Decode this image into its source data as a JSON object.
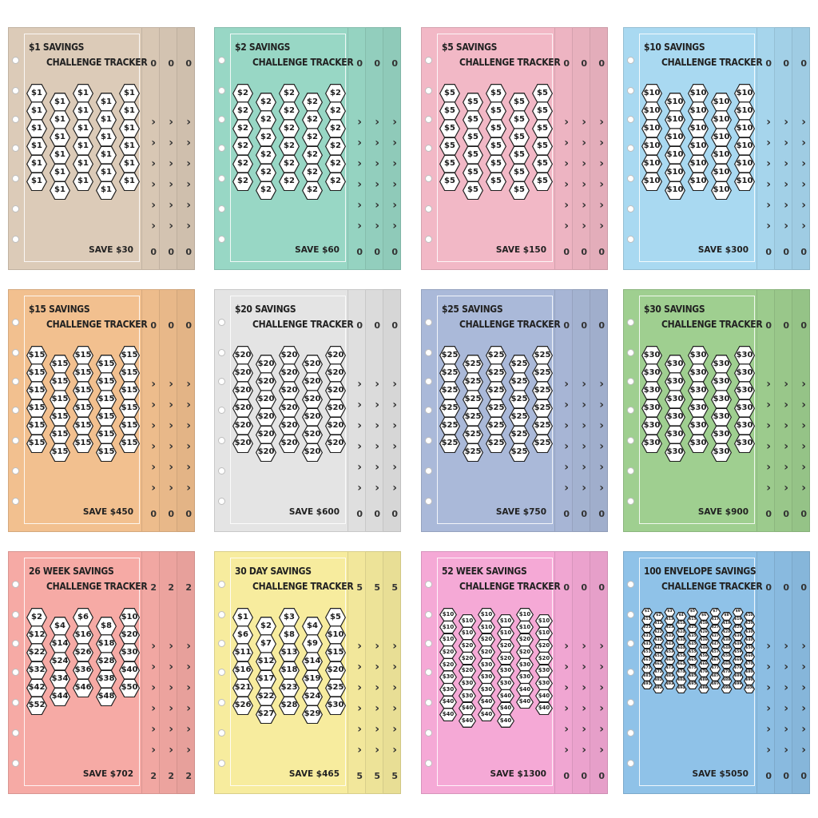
{
  "trackers": [
    {
      "title_line1": "$1 SAVINGS",
      "title_line2": "CHALLENGE TRACKER",
      "save_label": "SAVE $30",
      "back_peek": "0",
      "color": "#dccbb8",
      "hex_values": [
        "$1",
        "$1",
        "$1",
        "$1",
        "$1",
        "$1",
        "$1",
        "$1",
        "$1",
        "$1",
        "$1",
        "$1",
        "$1",
        "$1",
        "$1",
        "$1",
        "$1",
        "$1",
        "$1",
        "$1",
        "$1",
        "$1",
        "$1",
        "$1",
        "$1",
        "$1",
        "$1",
        "$1",
        "$1",
        "$1"
      ]
    },
    {
      "title_line1": "$2 SAVINGS",
      "title_line2": "CHALLENGE TRACKER",
      "save_label": "SAVE $60",
      "back_peek": "0",
      "color": "#98d7c5",
      "hex_values": [
        "$2",
        "$2",
        "$2",
        "$2",
        "$2",
        "$2",
        "$2",
        "$2",
        "$2",
        "$2",
        "$2",
        "$2",
        "$2",
        "$2",
        "$2",
        "$2",
        "$2",
        "$2",
        "$2",
        "$2",
        "$2",
        "$2",
        "$2",
        "$2",
        "$2",
        "$2",
        "$2",
        "$2",
        "$2",
        "$2"
      ]
    },
    {
      "title_line1": "$5 SAVINGS",
      "title_line2": "CHALLENGE TRACKER",
      "save_label": "SAVE $150",
      "back_peek": "0",
      "color": "#f2b8c6",
      "hex_values": [
        "$5",
        "$5",
        "$5",
        "$5",
        "$5",
        "$5",
        "$5",
        "$5",
        "$5",
        "$5",
        "$5",
        "$5",
        "$5",
        "$5",
        "$5",
        "$5",
        "$5",
        "$5",
        "$5",
        "$5",
        "$5",
        "$5",
        "$5",
        "$5",
        "$5",
        "$5",
        "$5",
        "$5",
        "$5",
        "$5"
      ]
    },
    {
      "title_line1": "$10 SAVINGS",
      "title_line2": "CHALLENGE TRACKER",
      "save_label": "SAVE $300",
      "back_peek": "0",
      "color": "#a9d9f1",
      "hex_values": [
        "$10",
        "$10",
        "$10",
        "$10",
        "$10",
        "$10",
        "$10",
        "$10",
        "$10",
        "$10",
        "$10",
        "$10",
        "$10",
        "$10",
        "$10",
        "$10",
        "$10",
        "$10",
        "$10",
        "$10",
        "$10",
        "$10",
        "$10",
        "$10",
        "$10",
        "$10",
        "$10",
        "$10",
        "$10",
        "$10"
      ]
    },
    {
      "title_line1": "$15 SAVINGS",
      "title_line2": "CHALLENGE TRACKER",
      "save_label": "SAVE $450",
      "back_peek": "0",
      "color": "#f2c08f",
      "hex_values": [
        "$15",
        "$15",
        "$15",
        "$15",
        "$15",
        "$15",
        "$15",
        "$15",
        "$15",
        "$15",
        "$15",
        "$15",
        "$15",
        "$15",
        "$15",
        "$15",
        "$15",
        "$15",
        "$15",
        "$15",
        "$15",
        "$15",
        "$15",
        "$15",
        "$15",
        "$15",
        "$15",
        "$15",
        "$15",
        "$15"
      ]
    },
    {
      "title_line1": "$20 SAVINGS",
      "title_line2": "CHALLENGE TRACKER",
      "save_label": "SAVE $600",
      "back_peek": "0",
      "color": "#e4e4e4",
      "hex_values": [
        "$20",
        "$20",
        "$20",
        "$20",
        "$20",
        "$20",
        "$20",
        "$20",
        "$20",
        "$20",
        "$20",
        "$20",
        "$20",
        "$20",
        "$20",
        "$20",
        "$20",
        "$20",
        "$20",
        "$20",
        "$20",
        "$20",
        "$20",
        "$20",
        "$20",
        "$20",
        "$20",
        "$20",
        "$20",
        "$20"
      ]
    },
    {
      "title_line1": "$25 SAVINGS",
      "title_line2": "CHALLENGE TRACKER",
      "save_label": "SAVE $750",
      "back_peek": "0",
      "color": "#aab9d9",
      "hex_values": [
        "$25",
        "$25",
        "$25",
        "$25",
        "$25",
        "$25",
        "$25",
        "$25",
        "$25",
        "$25",
        "$25",
        "$25",
        "$25",
        "$25",
        "$25",
        "$25",
        "$25",
        "$25",
        "$25",
        "$25",
        "$25",
        "$25",
        "$25",
        "$25",
        "$25",
        "$25",
        "$25",
        "$25",
        "$25",
        "$25"
      ]
    },
    {
      "title_line1": "$30 SAVINGS",
      "title_line2": "CHALLENGE TRACKER",
      "save_label": "SAVE $900",
      "back_peek": "0",
      "color": "#9fcf90",
      "hex_values": [
        "$30",
        "$30",
        "$30",
        "$30",
        "$30",
        "$30",
        "$30",
        "$30",
        "$30",
        "$30",
        "$30",
        "$30",
        "$30",
        "$30",
        "$30",
        "$30",
        "$30",
        "$30",
        "$30",
        "$30",
        "$30",
        "$30",
        "$30",
        "$30",
        "$30",
        "$30",
        "$30",
        "$30",
        "$30",
        "$30"
      ]
    },
    {
      "title_line1": "26 WEEK SAVINGS",
      "title_line2": "CHALLENGE TRACKER",
      "save_label": "SAVE $702",
      "back_peek": "2",
      "color": "#f6aaa5",
      "hex_values": [
        "$2",
        "$4",
        "$6",
        "$8",
        "$10",
        "$12",
        "$14",
        "$16",
        "$18",
        "$20",
        "$22",
        "$24",
        "$26",
        "$28",
        "$30",
        "$32",
        "$34",
        "$36",
        "$38",
        "$40",
        "$42",
        "$44",
        "$46",
        "$48",
        "$50",
        "$52"
      ]
    },
    {
      "title_line1": "30 DAY SAVINGS",
      "title_line2": "CHALLENGE TRACKER",
      "save_label": "SAVE $465",
      "back_peek": "5",
      "color": "#f7ec9e",
      "hex_values": [
        "$1",
        "$2",
        "$3",
        "$4",
        "$5",
        "$6",
        "$7",
        "$8",
        "$9",
        "$10",
        "$11",
        "$12",
        "$13",
        "$14",
        "$15",
        "$16",
        "$17",
        "$18",
        "$19",
        "$20",
        "$21",
        "$22",
        "$23",
        "$24",
        "$25",
        "$26",
        "$27",
        "$28",
        "$29",
        "$30"
      ]
    },
    {
      "title_line1": "52 WEEK SAVINGS",
      "title_line2": "CHALLENGE TRACKER",
      "save_label": "SAVE $1300",
      "back_peek": "0",
      "color": "#f5a9d6",
      "hex_values": [
        "$10",
        "$10",
        "$10",
        "$10",
        "$10",
        "$10",
        "$10",
        "$10",
        "$10",
        "$10",
        "$10",
        "$10",
        "$10",
        "$20",
        "$20",
        "$20",
        "$20",
        "$20",
        "$20",
        "$20",
        "$20",
        "$20",
        "$20",
        "$20",
        "$20",
        "$20",
        "$30",
        "$30",
        "$30",
        "$30",
        "$30",
        "$30",
        "$30",
        "$30",
        "$30",
        "$30",
        "$30",
        "$30",
        "$30",
        "$40",
        "$40",
        "$40",
        "$40",
        "$40",
        "$40",
        "$40",
        "$40",
        "$40",
        "$40",
        "$40",
        "$40",
        "$40"
      ]
    },
    {
      "title_line1": "100 ENVELOPE SAVINGS",
      "title_line2": "CHALLENGE TRACKER",
      "save_label": "SAVE $5050",
      "back_peek": "0",
      "color": "#8fc2e8",
      "hex_values": [
        "$1",
        "$2",
        "$3",
        "$4",
        "$5",
        "$6",
        "$7",
        "$8",
        "$9",
        "$10",
        "$11",
        "$12",
        "$13",
        "$14",
        "$15",
        "$16",
        "$17",
        "$18",
        "$19",
        "$20",
        "$21",
        "$22",
        "$23",
        "$24",
        "$25",
        "$26",
        "$27",
        "$28",
        "$29",
        "$30",
        "$31",
        "$32",
        "$33",
        "$34",
        "$35",
        "$36",
        "$37",
        "$38",
        "$39",
        "$40",
        "$41",
        "$42",
        "$43",
        "$44",
        "$45",
        "$46",
        "$47",
        "$48",
        "$49",
        "$50",
        "$51",
        "$52",
        "$53",
        "$54",
        "$55",
        "$56",
        "$57",
        "$58",
        "$59",
        "$60",
        "$61",
        "$62",
        "$63",
        "$64",
        "$65",
        "$66",
        "$67",
        "$68",
        "$69",
        "$70",
        "$71",
        "$72",
        "$73",
        "$74",
        "$75",
        "$76",
        "$77",
        "$78",
        "$79",
        "$80",
        "$81",
        "$82",
        "$83",
        "$84",
        "$85",
        "$86",
        "$87",
        "$88",
        "$89",
        "$90",
        "$91",
        "$92",
        "$93",
        "$94",
        "$95",
        "$96",
        "$97",
        "$98",
        "$99",
        "$100"
      ]
    }
  ]
}
